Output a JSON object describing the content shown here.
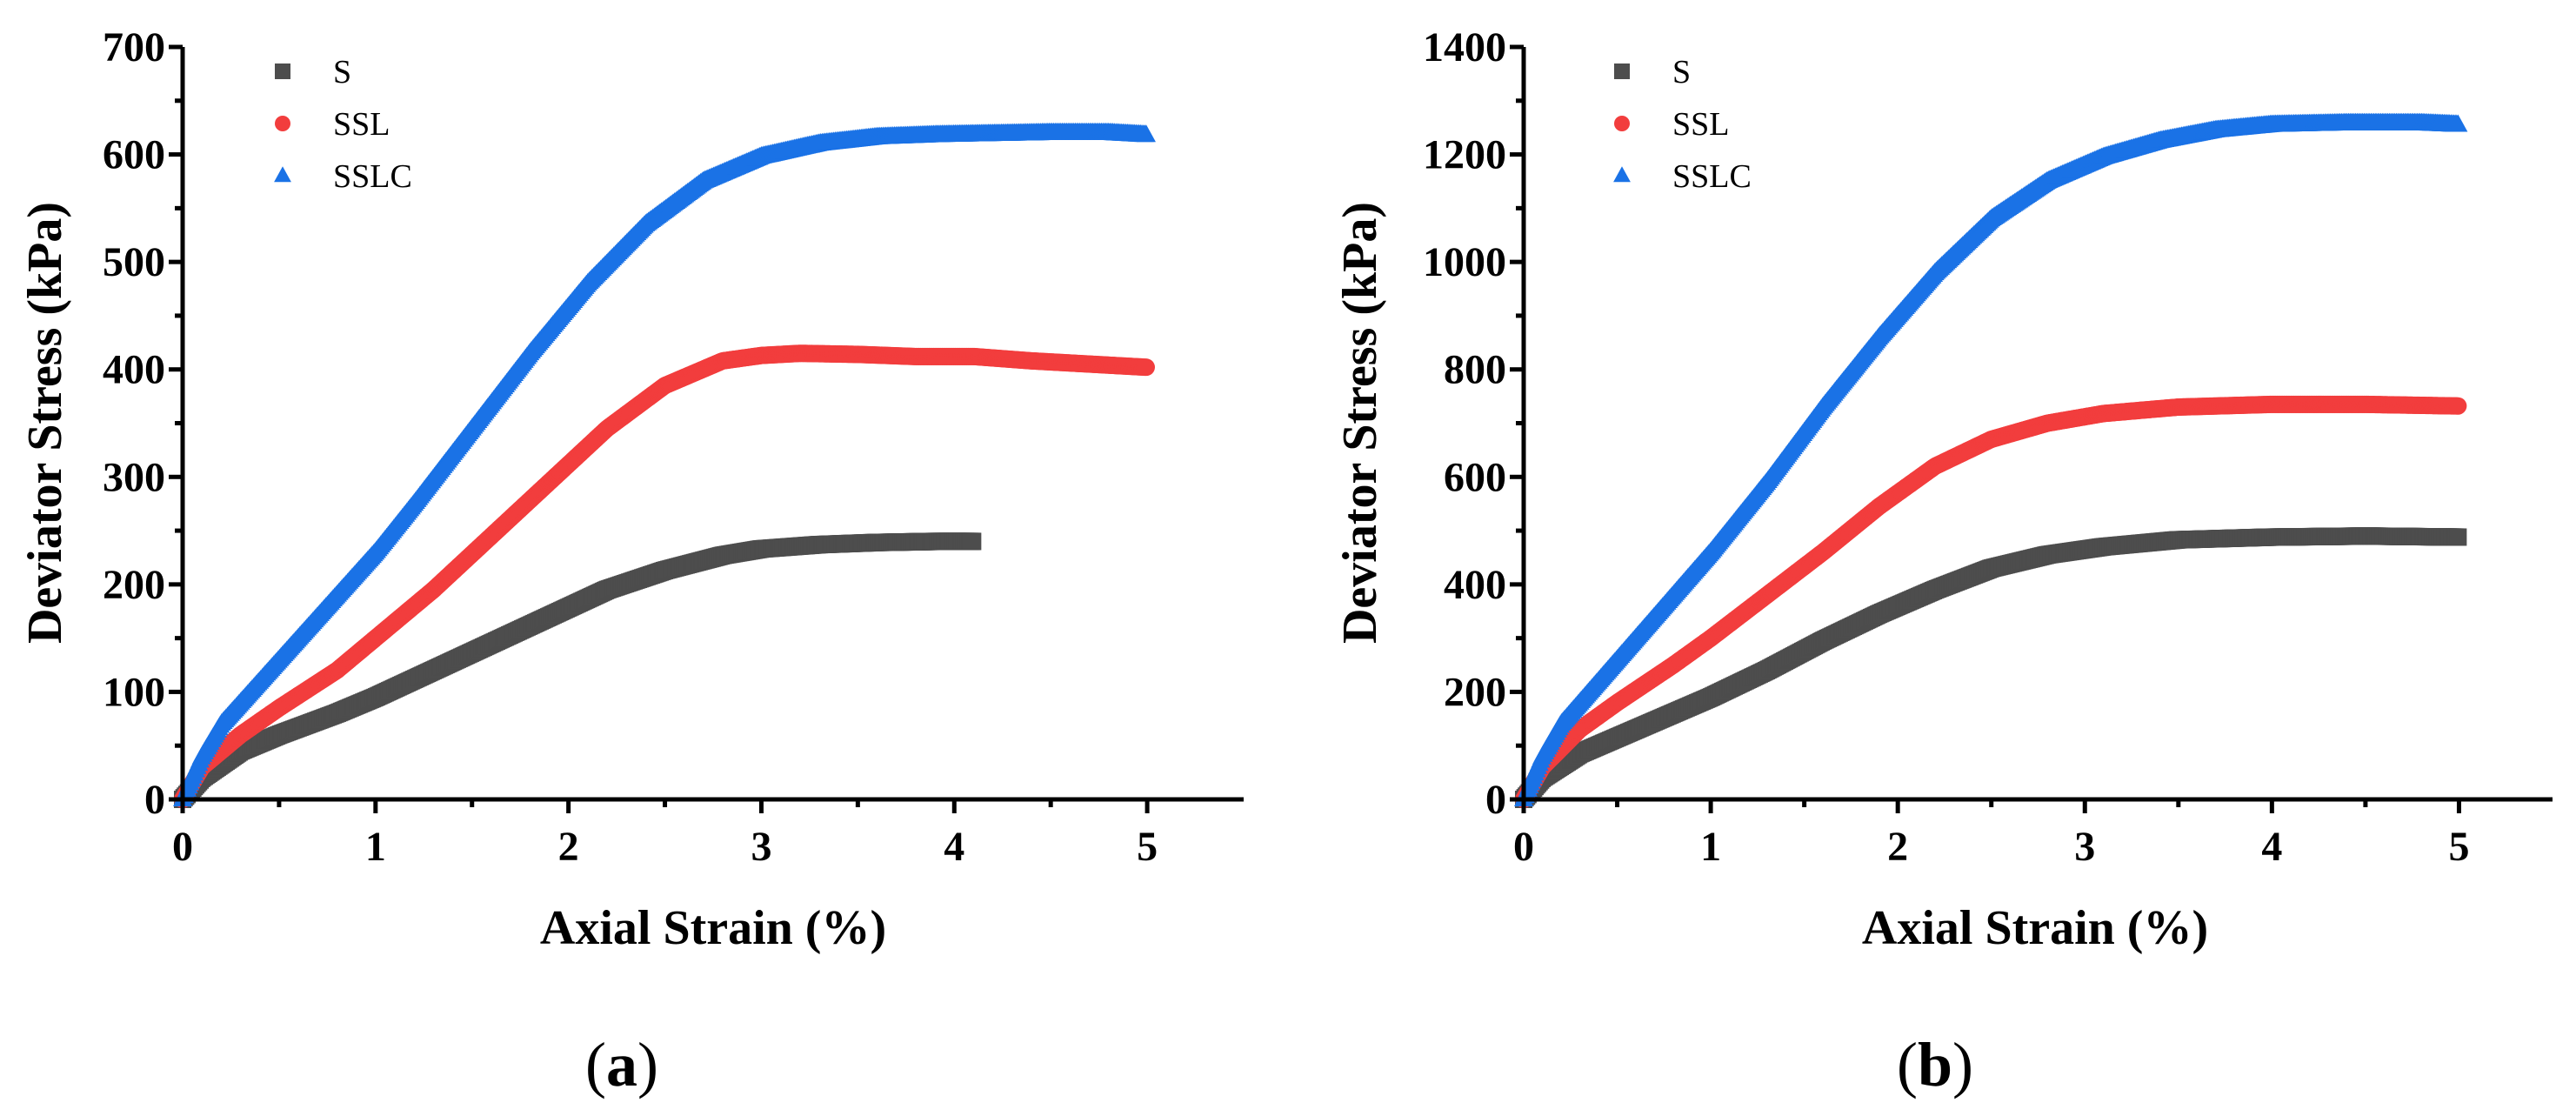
{
  "series_colors": {
    "S": "#4d4d4d",
    "SSL": "#f23d3d",
    "SSLC": "#1a72e6"
  },
  "chart_data": [
    {
      "type": "line",
      "panel_label": "a",
      "xlabel": "Axial Strain (%)",
      "ylabel": "Deviator Stress (kPa)",
      "xlim": [
        0,
        5.5
      ],
      "ylim": [
        0,
        700
      ],
      "xticks": [
        0,
        1,
        2,
        3,
        4,
        5
      ],
      "yticks": [
        0,
        100,
        200,
        300,
        400,
        500,
        600,
        700
      ],
      "legend_position": "top-left",
      "series": [
        {
          "name": "S",
          "marker": "square",
          "x": [
            0,
            0.1,
            0.3,
            0.5,
            0.8,
            1.0,
            1.3,
            1.6,
            1.9,
            2.2,
            2.5,
            2.8,
            3.0,
            3.3,
            3.6,
            3.9,
            4.1
          ],
          "y": [
            0,
            20,
            45,
            60,
            80,
            95,
            120,
            145,
            170,
            195,
            213,
            227,
            233,
            237,
            239,
            240,
            240
          ]
        },
        {
          "name": "SSL",
          "marker": "circle",
          "x": [
            0,
            0.1,
            0.3,
            0.5,
            0.8,
            1.0,
            1.3,
            1.6,
            1.9,
            2.2,
            2.5,
            2.8,
            3.0,
            3.2,
            3.5,
            3.8,
            4.1,
            4.4,
            4.7,
            5.0
          ],
          "y": [
            0,
            30,
            60,
            85,
            120,
            150,
            195,
            245,
            295,
            345,
            385,
            408,
            413,
            415,
            414,
            412,
            412,
            408,
            405,
            402
          ]
        },
        {
          "name": "SSLC",
          "marker": "triangle",
          "x": [
            0,
            0.1,
            0.2,
            0.4,
            0.6,
            0.8,
            1.0,
            1.2,
            1.5,
            1.8,
            2.1,
            2.4,
            2.7,
            3.0,
            3.3,
            3.6,
            3.9,
            4.2,
            4.5,
            4.8,
            5.0
          ],
          "y": [
            0,
            40,
            70,
            110,
            150,
            190,
            230,
            275,
            345,
            415,
            480,
            535,
            575,
            598,
            610,
            616,
            618,
            619,
            620,
            620,
            618
          ]
        }
      ]
    },
    {
      "type": "line",
      "panel_label": "b",
      "xlabel": "Axial Strain (%)",
      "ylabel": "Deviator Stress (kPa)",
      "xlim": [
        0,
        5.5
      ],
      "ylim": [
        0,
        1400
      ],
      "xticks": [
        0,
        1,
        2,
        3,
        4,
        5
      ],
      "yticks": [
        0,
        200,
        400,
        600,
        800,
        1000,
        1200,
        1400
      ],
      "legend_position": "top-left",
      "series": [
        {
          "name": "S",
          "marker": "square",
          "x": [
            0,
            0.1,
            0.3,
            0.5,
            0.8,
            1.0,
            1.3,
            1.6,
            1.9,
            2.2,
            2.5,
            2.8,
            3.1,
            3.5,
            4.0,
            4.5,
            5.0
          ],
          "y": [
            0,
            40,
            85,
            115,
            160,
            190,
            240,
            295,
            345,
            390,
            430,
            455,
            470,
            483,
            488,
            490,
            488
          ]
        },
        {
          "name": "SSL",
          "marker": "circle",
          "x": [
            0,
            0.1,
            0.3,
            0.5,
            0.8,
            1.0,
            1.3,
            1.6,
            1.9,
            2.2,
            2.5,
            2.8,
            3.1,
            3.5,
            4.0,
            4.5,
            5.0
          ],
          "y": [
            0,
            60,
            130,
            180,
            250,
            300,
            380,
            460,
            545,
            620,
            670,
            700,
            718,
            730,
            735,
            735,
            732
          ]
        },
        {
          "name": "SSLC",
          "marker": "triangle",
          "x": [
            0,
            0.1,
            0.2,
            0.4,
            0.6,
            0.8,
            1.0,
            1.3,
            1.6,
            1.9,
            2.2,
            2.5,
            2.8,
            3.1,
            3.4,
            3.7,
            4.0,
            4.4,
            4.8,
            5.0
          ],
          "y": [
            0,
            80,
            140,
            220,
            300,
            380,
            460,
            590,
            730,
            860,
            980,
            1080,
            1150,
            1195,
            1225,
            1245,
            1255,
            1258,
            1258,
            1255
          ]
        }
      ]
    }
  ]
}
